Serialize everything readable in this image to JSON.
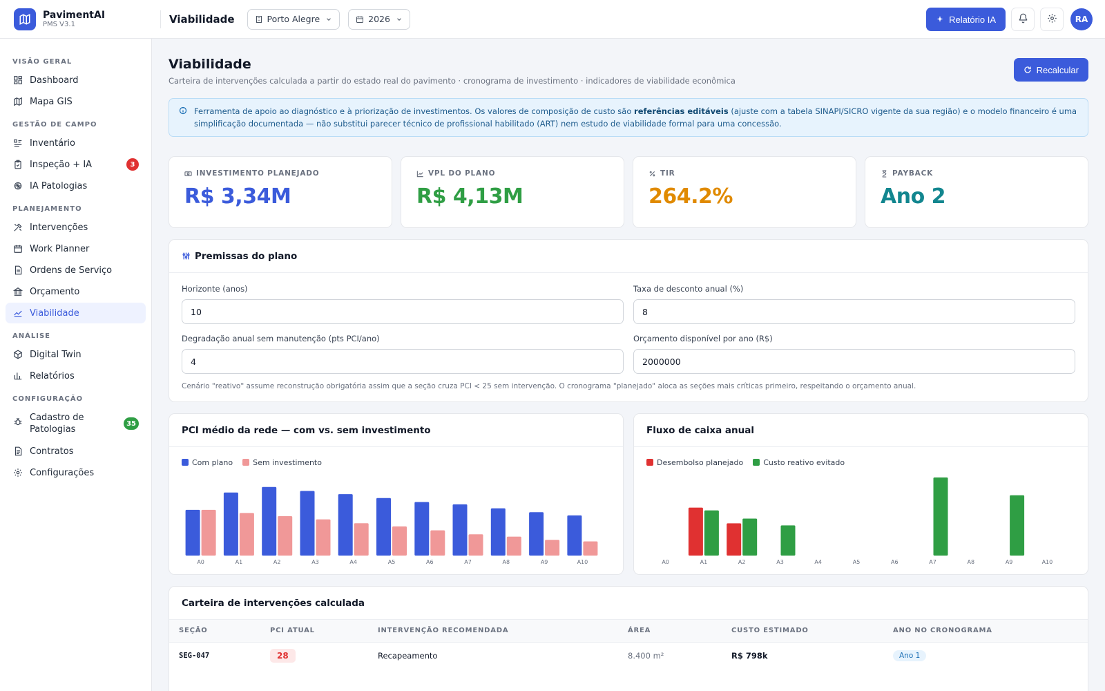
{
  "brand": {
    "name": "PavimentAI",
    "version": "PMS V3.1"
  },
  "topbar": {
    "title": "Viabilidade",
    "city": "Porto Alegre",
    "year": "2026",
    "ai_report_label": "Relatório IA",
    "avatar_initials": "RA"
  },
  "sidebar": {
    "sections": {
      "overview": "VISÃO GERAL",
      "field": "GESTÃO DE CAMPO",
      "planning": "PLANEJAMENTO",
      "analysis": "ANÁLISE",
      "config": "CONFIGURAÇÃO"
    },
    "items": {
      "dashboard": "Dashboard",
      "gis": "Mapa GIS",
      "inventory": "Inventário",
      "inspection": "Inspeção + IA",
      "inspection_badge": "3",
      "pathologies_ai": "IA Patologias",
      "interventions": "Intervenções",
      "work_planner": "Work Planner",
      "service_orders": "Ordens de Serviço",
      "budget": "Orçamento",
      "viability": "Viabilidade",
      "digital_twin": "Digital Twin",
      "reports": "Relatórios",
      "pathology_registry": "Cadastro de Patologias",
      "pathology_badge": "35",
      "contracts": "Contratos",
      "settings": "Configurações"
    }
  },
  "page": {
    "title": "Viabilidade",
    "subtitle": "Carteira de intervenções calculada a partir do estado real do pavimento · cronograma de investimento · indicadores de viabilidade econômica",
    "recalc_label": "Recalcular"
  },
  "info": {
    "text_a": "Ferramenta de apoio ao diagnóstico e à priorização de investimentos. Os valores de composição de custo são ",
    "bold": "referências editáveis",
    "text_b": " (ajuste com a tabela SINAPI/SICRO vigente da sua região) e o modelo financeiro é uma simplificação documentada — não substitui parecer técnico de profissional habilitado (ART) nem estudo de viabilidade formal para uma concessão."
  },
  "kpis": [
    {
      "label": "INVESTIMENTO PLANEJADO",
      "value": "R$ 3,34M",
      "color": "#3b5bdb",
      "icon": "money-icon"
    },
    {
      "label": "VPL DO PLANO",
      "value": "R$ 4,13M",
      "color": "#2f9e44",
      "icon": "chart-icon"
    },
    {
      "label": "TIR",
      "value": "264.2%",
      "color": "#e08a00",
      "icon": "percent-icon"
    },
    {
      "label": "PAYBACK",
      "value": "Ano 2",
      "color": "#12868f",
      "icon": "hourglass-icon"
    }
  ],
  "premissas": {
    "title": "Premissas do plano",
    "fields": {
      "horizon_label": "Horizonte (anos)",
      "horizon_value": "10",
      "discount_label": "Taxa de desconto anual (%)",
      "discount_value": "8",
      "degradation_label": "Degradação anual sem manutenção (pts PCI/ano)",
      "degradation_value": "4",
      "budget_label": "Orçamento disponível por ano (R$)",
      "budget_value": "2000000"
    },
    "note": "Cenário \"reativo\" assume reconstrução obrigatória assim que a seção cruza PCI < 25 sem intervenção. O cronograma \"planejado\" aloca as seções mais críticas primeiro, respeitando o orçamento anual."
  },
  "chart_data": [
    {
      "type": "bar",
      "title": "PCI médio da rede — com vs. sem investimento",
      "categories": [
        "A0",
        "A1",
        "A2",
        "A3",
        "A4",
        "A5",
        "A6",
        "A7",
        "A8",
        "A9",
        "A10"
      ],
      "series": [
        {
          "name": "Com plano",
          "color": "#3b5bdb",
          "values": [
            58,
            80,
            87,
            82,
            78,
            73,
            68,
            65,
            60,
            55,
            51
          ]
        },
        {
          "name": "Sem investimento",
          "color": "#f09898",
          "values": [
            58,
            54,
            50,
            46,
            41,
            37,
            32,
            27,
            24,
            20,
            18
          ]
        }
      ],
      "ylim": [
        0,
        100
      ],
      "legend": "top-left",
      "grid": false
    },
    {
      "type": "bar",
      "title": "Fluxo de caixa anual",
      "categories": [
        "A0",
        "A1",
        "A2",
        "A3",
        "A4",
        "A5",
        "A6",
        "A7",
        "A8",
        "A9",
        "A10"
      ],
      "series": [
        {
          "name": "Desembolso planejado",
          "color": "#e03131",
          "values": [
            0,
            700,
            470,
            0,
            0,
            0,
            0,
            0,
            0,
            0,
            0
          ]
        },
        {
          "name": "Custo reativo evitado",
          "color": "#2f9e44",
          "values": [
            0,
            660,
            540,
            440,
            0,
            0,
            0,
            1140,
            0,
            880,
            0
          ]
        }
      ],
      "ylim": [
        0,
        1150
      ],
      "legend": "top-left",
      "grid": false
    }
  ],
  "table": {
    "title": "Carteira de intervenções calculada",
    "columns": [
      "SEÇÃO",
      "PCI ATUAL",
      "INTERVENÇÃO RECOMENDADA",
      "ÁREA",
      "CUSTO ESTIMADO",
      "ANO NO CRONOGRAMA"
    ],
    "rows": [
      {
        "section": "SEG-047",
        "pci": "28",
        "intervention": "Recapeamento",
        "area": "8.400 m²",
        "cost": "R$ 798k",
        "year": "Ano 1"
      }
    ]
  }
}
